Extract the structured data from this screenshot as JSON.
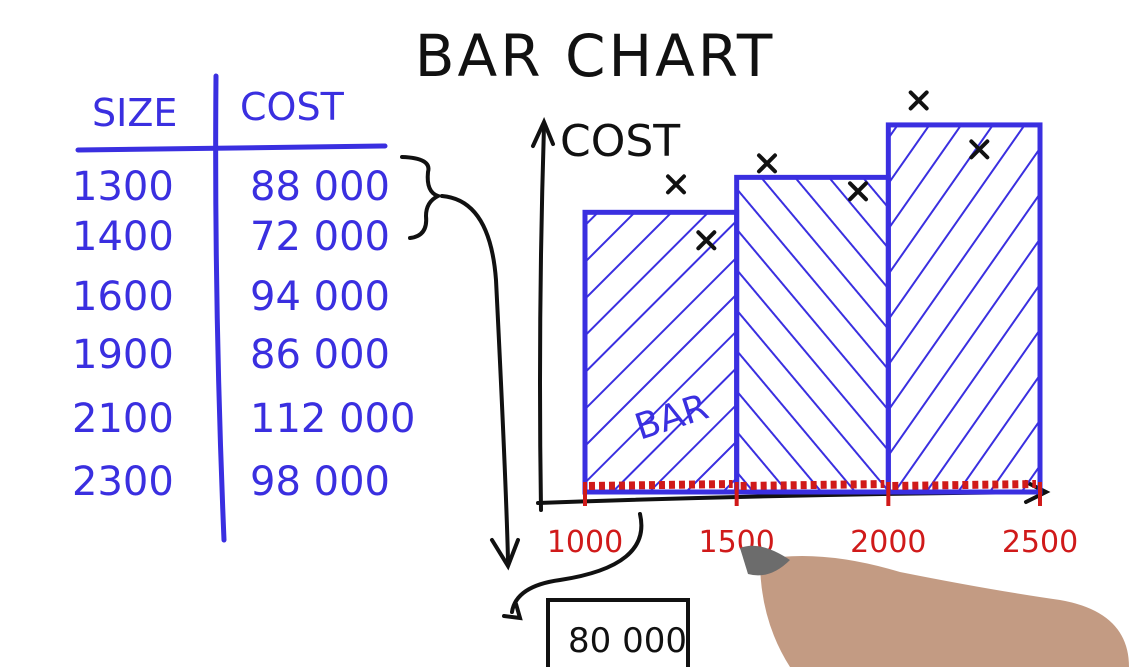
{
  "colors": {
    "ink_black": "#111111",
    "marker_blue": "#3a2fe0",
    "marker_red": "#d01a1a"
  },
  "table": {
    "headers": [
      "SIZE",
      "COST"
    ],
    "rows": [
      [
        "1300",
        "88 000"
      ],
      [
        "1400",
        "72 000"
      ],
      [
        "1600",
        "94 000"
      ],
      [
        "1900",
        "86 000"
      ],
      [
        "2100",
        "112 000"
      ],
      [
        "2300",
        "98 000"
      ]
    ]
  },
  "callout": {
    "value": "80 000"
  },
  "chart_data": {
    "type": "bar",
    "title": "BAR CHART",
    "ylabel": "COST",
    "xlabel": "",
    "bar_label": "BAR",
    "xlim": [
      1000,
      2500
    ],
    "ylim": [
      0,
      125000
    ],
    "x_ticks": [
      "1000",
      "1500",
      "2000",
      "2500"
    ],
    "bins": [
      {
        "from": 1000,
        "to": 1500,
        "value": 80000
      },
      {
        "from": 1500,
        "to": 2000,
        "value": 90000
      },
      {
        "from": 2000,
        "to": 2500,
        "value": 105000
      }
    ],
    "points": [
      {
        "x": 1300,
        "y": 88000
      },
      {
        "x": 1400,
        "y": 72000
      },
      {
        "x": 1600,
        "y": 94000
      },
      {
        "x": 1900,
        "y": 86000
      },
      {
        "x": 2100,
        "y": 112000
      },
      {
        "x": 2300,
        "y": 98000
      }
    ]
  }
}
